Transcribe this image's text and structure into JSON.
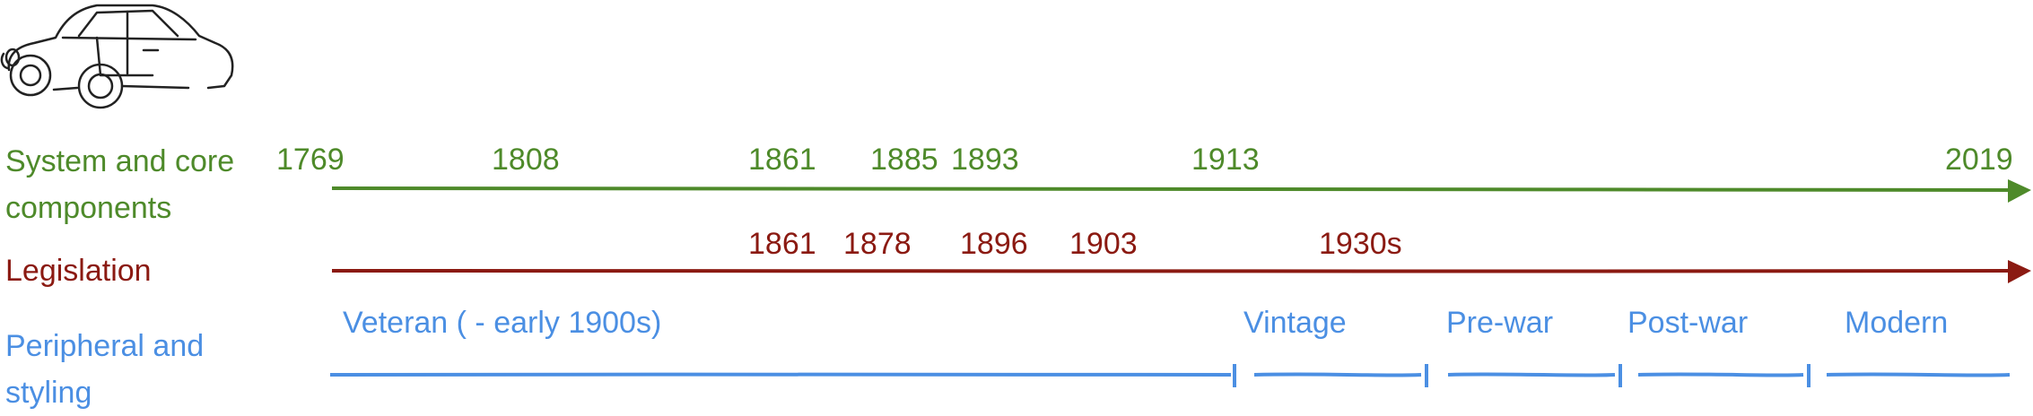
{
  "rows": [
    {
      "id": "system",
      "label_lines": [
        "System and core",
        "components"
      ],
      "color": "#4e8a2a",
      "years": [
        "1769",
        "1808",
        "1861",
        "1885",
        "1893",
        "1913",
        "2019"
      ]
    },
    {
      "id": "legislation",
      "label_lines": [
        "Legislation"
      ],
      "color": "#8b1a12",
      "years": [
        "1861",
        "1878",
        "1896",
        "1903",
        "1930s"
      ]
    },
    {
      "id": "peripheral",
      "label_lines": [
        "Peripheral and",
        "styling"
      ],
      "color": "#4b8fe3",
      "eras": [
        "Veteran ( - early 1900s)",
        "Vintage",
        "Pre-war",
        "Post-war",
        "Modern"
      ]
    }
  ],
  "icons": {
    "logo": "car-icon"
  }
}
